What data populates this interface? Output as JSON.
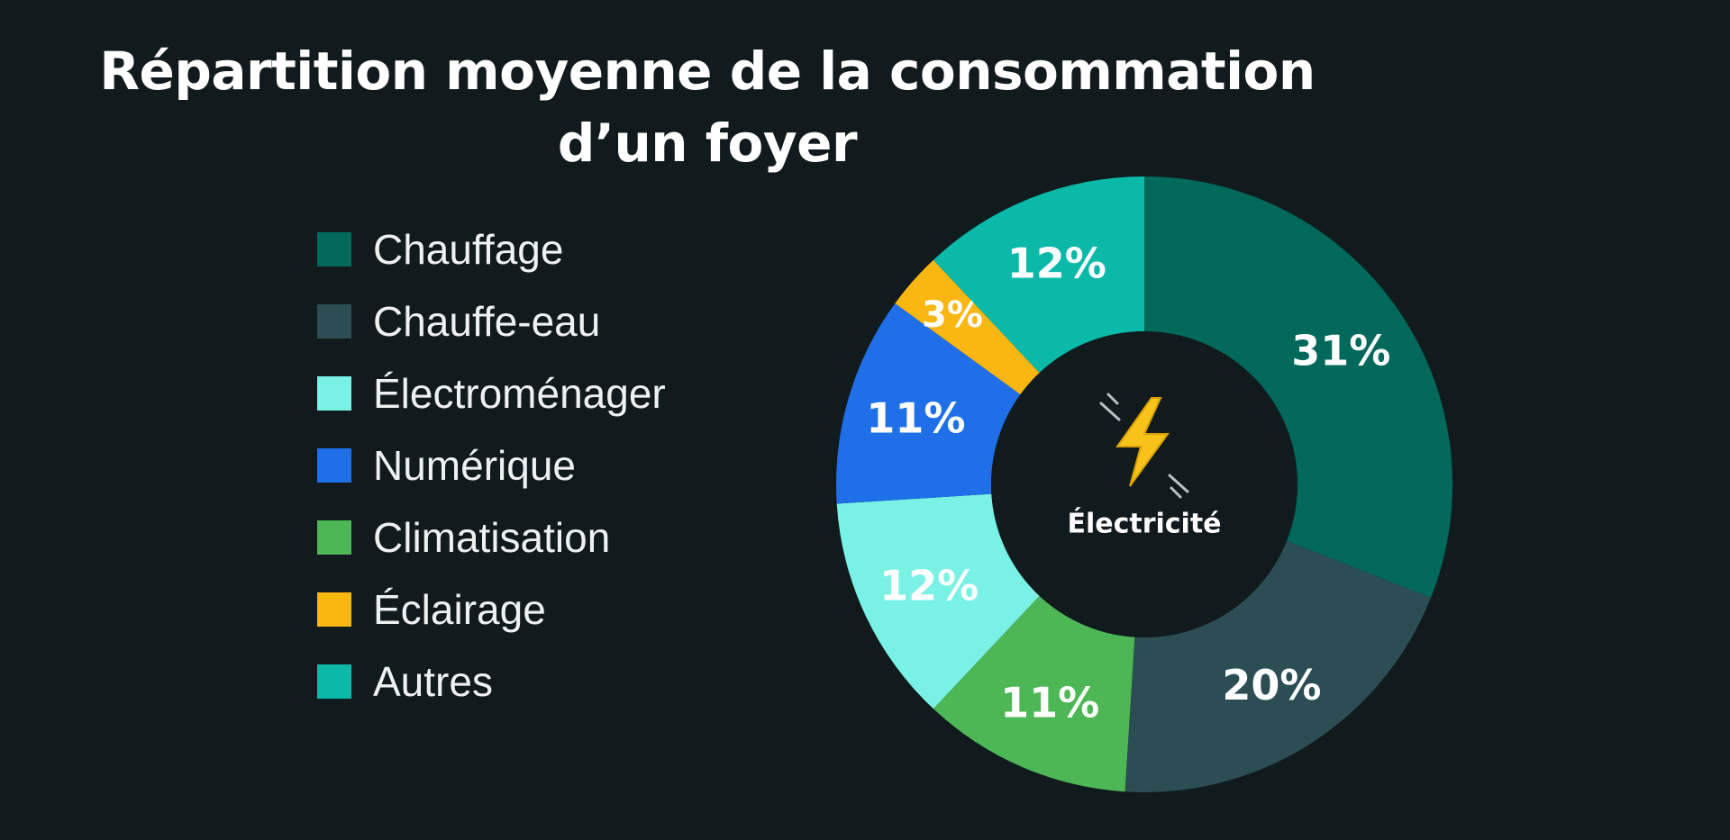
{
  "title": {
    "line1": "Répartition moyenne de la consommation",
    "line2": "d’un foyer"
  },
  "chart_data": {
    "type": "pie",
    "variant": "donut",
    "title": "Répartition moyenne de la consommation d’un foyer",
    "center_label": "Électricité",
    "center_icon": "lightning-bolt-icon",
    "legend_position": "left",
    "slices": [
      {
        "name": "Chauffage",
        "value": 31,
        "label": "31%",
        "color": "#00695c"
      },
      {
        "name": "Chauffe-eau",
        "value": 20,
        "label": "20%",
        "color": "#2b4d53"
      },
      {
        "name": "Climatisation",
        "value": 11,
        "label": "11%",
        "color": "#4db655"
      },
      {
        "name": "Électroménager",
        "value": 12,
        "label": "12%",
        "color": "#79f2e5"
      },
      {
        "name": "Numérique",
        "value": 11,
        "label": "11%",
        "color": "#1e6fe8"
      },
      {
        "name": "Éclairage",
        "value": 3,
        "label": "3%",
        "color": "#fbb711"
      },
      {
        "name": "Autres",
        "value": 12,
        "label": "12%",
        "color": "#0ab9a8"
      }
    ],
    "legend": [
      {
        "name": "Chauffage",
        "color": "#00695c"
      },
      {
        "name": "Chauffe-eau",
        "color": "#2b4d53"
      },
      {
        "name": "Électroménager",
        "color": "#79f2e5"
      },
      {
        "name": "Numérique",
        "color": "#1e6fe8"
      },
      {
        "name": "Climatisation",
        "color": "#4db655"
      },
      {
        "name": "Éclairage",
        "color": "#fbb711"
      },
      {
        "name": "Autres",
        "color": "#0ab9a8"
      }
    ]
  },
  "colors": {
    "background": "#111b1e",
    "center_hole": "#111b1e",
    "text": "#ffffff",
    "bolt": "#f7c21a"
  }
}
